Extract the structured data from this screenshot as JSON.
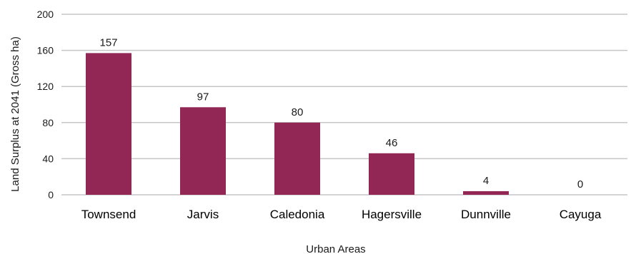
{
  "chart_data": {
    "type": "bar",
    "categories": [
      "Townsend",
      "Jarvis",
      "Caledonia",
      "Hagersville",
      "Dunnville",
      "Cayuga"
    ],
    "values": [
      157,
      97,
      80,
      46,
      4,
      0
    ],
    "data_labels": [
      "157",
      "97",
      "80",
      "46",
      "4",
      "0"
    ],
    "title": "",
    "xlabel": "Urban Areas",
    "ylabel": "Land Surplus  at 2041 (Gross ha)",
    "ylim": [
      0,
      200
    ],
    "yticks": [
      0,
      40,
      80,
      120,
      160,
      200
    ],
    "grid": true,
    "legend": "none",
    "bar_color": "#922755",
    "grid_color": "#c6c6c6"
  }
}
